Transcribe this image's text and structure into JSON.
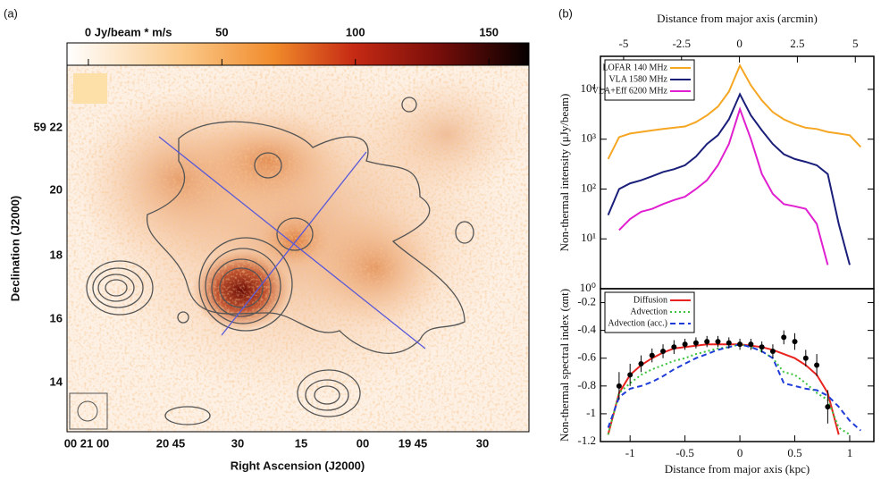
{
  "panel_labels": [
    "(a)",
    "(b)"
  ],
  "map": {
    "colorbar": {
      "lim": [
        -8,
        165
      ],
      "ticks": [
        {
          "value": 0,
          "label": "0 Jy/beam * m/s"
        },
        50,
        100,
        150
      ]
    },
    "xticks": [
      "00 21 00",
      "20 45",
      "30",
      "15",
      "00",
      "19 45",
      "30"
    ],
    "yticks": [
      "59 22",
      "20",
      "18",
      "16",
      "14"
    ],
    "xlabel": "Right Ascension (J2000)",
    "ylabel": "Declination (J2000)"
  },
  "chart_data": [
    {
      "type": "line",
      "log_y": true,
      "legend": "upper left",
      "x2label": "Distance from major axis (arcmin)",
      "ylabel": "Non-thermal intensity (μJy/beam)",
      "xlim": [
        -1.27,
        1.22
      ],
      "ylim": [
        1,
        46000
      ],
      "x2lim": [
        -6,
        5.8
      ],
      "x2ticks": [
        -5,
        -2.5,
        0,
        2.5,
        5
      ],
      "yticks": [
        {
          "value": 1,
          "label": "10⁰"
        },
        {
          "value": 10,
          "label": "10¹"
        },
        {
          "value": 100,
          "label": "10²"
        },
        {
          "value": 1000,
          "label": "10³"
        },
        {
          "value": 10000,
          "label": "10⁴"
        }
      ],
      "x": [
        -1.2,
        -1.1,
        -1.0,
        -0.9,
        -0.8,
        -0.7,
        -0.6,
        -0.5,
        -0.4,
        -0.3,
        -0.2,
        -0.1,
        0,
        0.1,
        0.2,
        0.3,
        0.4,
        0.5,
        0.6,
        0.7,
        0.8,
        0.9,
        1.0,
        1.1
      ],
      "series": [
        {
          "name": "LOFAR 140 MHz",
          "color": "#f5a623",
          "values": [
            400,
            1100,
            1300,
            1400,
            1500,
            1600,
            1700,
            1800,
            2200,
            3000,
            4500,
            9000,
            30000,
            12000,
            6000,
            3500,
            2500,
            2000,
            1700,
            1600,
            1400,
            1300,
            1200,
            700
          ]
        },
        {
          "name": "VLA 1580 MHz",
          "color": "#1a1f7a",
          "values": [
            30,
            100,
            130,
            150,
            180,
            220,
            250,
            300,
            450,
            800,
            1200,
            2500,
            8000,
            3000,
            1500,
            800,
            500,
            400,
            350,
            300,
            200,
            20,
            3,
            null
          ]
        },
        {
          "name": "VLA+Eff 6200 MHz",
          "color": "#e020d0",
          "values": [
            null,
            15,
            25,
            35,
            40,
            50,
            60,
            70,
            100,
            150,
            300,
            800,
            4000,
            1000,
            200,
            80,
            50,
            45,
            40,
            20,
            3,
            null,
            null,
            null
          ]
        }
      ]
    },
    {
      "type": "line",
      "log_y": false,
      "legend": "upper left",
      "xlabel": "Distance from major axis (kpc)",
      "ylabel": "Non-thermal spectral index (αnt)",
      "xlim": [
        -1.27,
        1.22
      ],
      "ylim": [
        -1.2,
        -0.1
      ],
      "xticks": [
        -1,
        -0.5,
        0,
        0.5,
        1
      ],
      "yticks": [
        -1.2,
        -1,
        -0.8,
        -0.6,
        -0.4,
        -0.2
      ],
      "x": [
        -1.2,
        -1.1,
        -1.0,
        -0.9,
        -0.8,
        -0.7,
        -0.6,
        -0.5,
        -0.4,
        -0.3,
        -0.2,
        -0.1,
        0,
        0.1,
        0.2,
        0.3,
        0.4,
        0.5,
        0.6,
        0.7,
        0.8,
        0.9,
        1.0,
        1.1
      ],
      "series": [
        {
          "name": "Diffusion",
          "color": "#e8231f",
          "dash": "solid",
          "values": [
            -1.15,
            -0.85,
            -0.72,
            -0.65,
            -0.6,
            -0.56,
            -0.53,
            -0.52,
            -0.51,
            -0.5,
            -0.5,
            -0.5,
            -0.5,
            -0.51,
            -0.52,
            -0.54,
            -0.57,
            -0.6,
            -0.65,
            -0.72,
            -0.85,
            -1.15,
            null,
            null
          ]
        },
        {
          "name": "Advection",
          "color": "#3cc43c",
          "dash": "dotted",
          "values": [
            -1.15,
            -0.85,
            -0.78,
            -0.72,
            -0.68,
            -0.65,
            -0.62,
            -0.6,
            -0.57,
            -0.55,
            -0.53,
            -0.52,
            -0.5,
            -0.52,
            -0.55,
            -0.6,
            -0.7,
            -0.72,
            -0.78,
            -0.85,
            -0.9,
            -1.1,
            -1.15,
            null
          ]
        },
        {
          "name": "Advection (acc.)",
          "color": "#1e3cd8",
          "dash": "dashed",
          "values": [
            -1.1,
            -0.88,
            -0.82,
            -0.8,
            -0.77,
            -0.73,
            -0.68,
            -0.64,
            -0.6,
            -0.57,
            -0.54,
            -0.52,
            -0.5,
            -0.52,
            -0.55,
            -0.6,
            -0.78,
            -0.8,
            -0.82,
            -0.83,
            -0.87,
            -0.95,
            -1.05,
            -1.12
          ]
        },
        {
          "color": "#000000",
          "marker": "circle",
          "values": [
            null,
            -0.8,
            -0.72,
            -0.64,
            -0.58,
            -0.55,
            -0.52,
            -0.5,
            -0.49,
            -0.48,
            -0.48,
            -0.49,
            -0.5,
            -0.5,
            -0.52,
            -0.55,
            -0.45,
            -0.48,
            -0.6,
            -0.65,
            -0.95,
            null,
            null,
            null
          ],
          "errors": [
            null,
            0.1,
            0.08,
            0.06,
            0.05,
            0.05,
            0.05,
            0.04,
            0.04,
            0.04,
            0.04,
            0.04,
            0.04,
            0.04,
            0.04,
            0.05,
            0.05,
            0.06,
            0.06,
            0.08,
            0.12,
            null,
            null,
            null
          ]
        }
      ]
    }
  ]
}
